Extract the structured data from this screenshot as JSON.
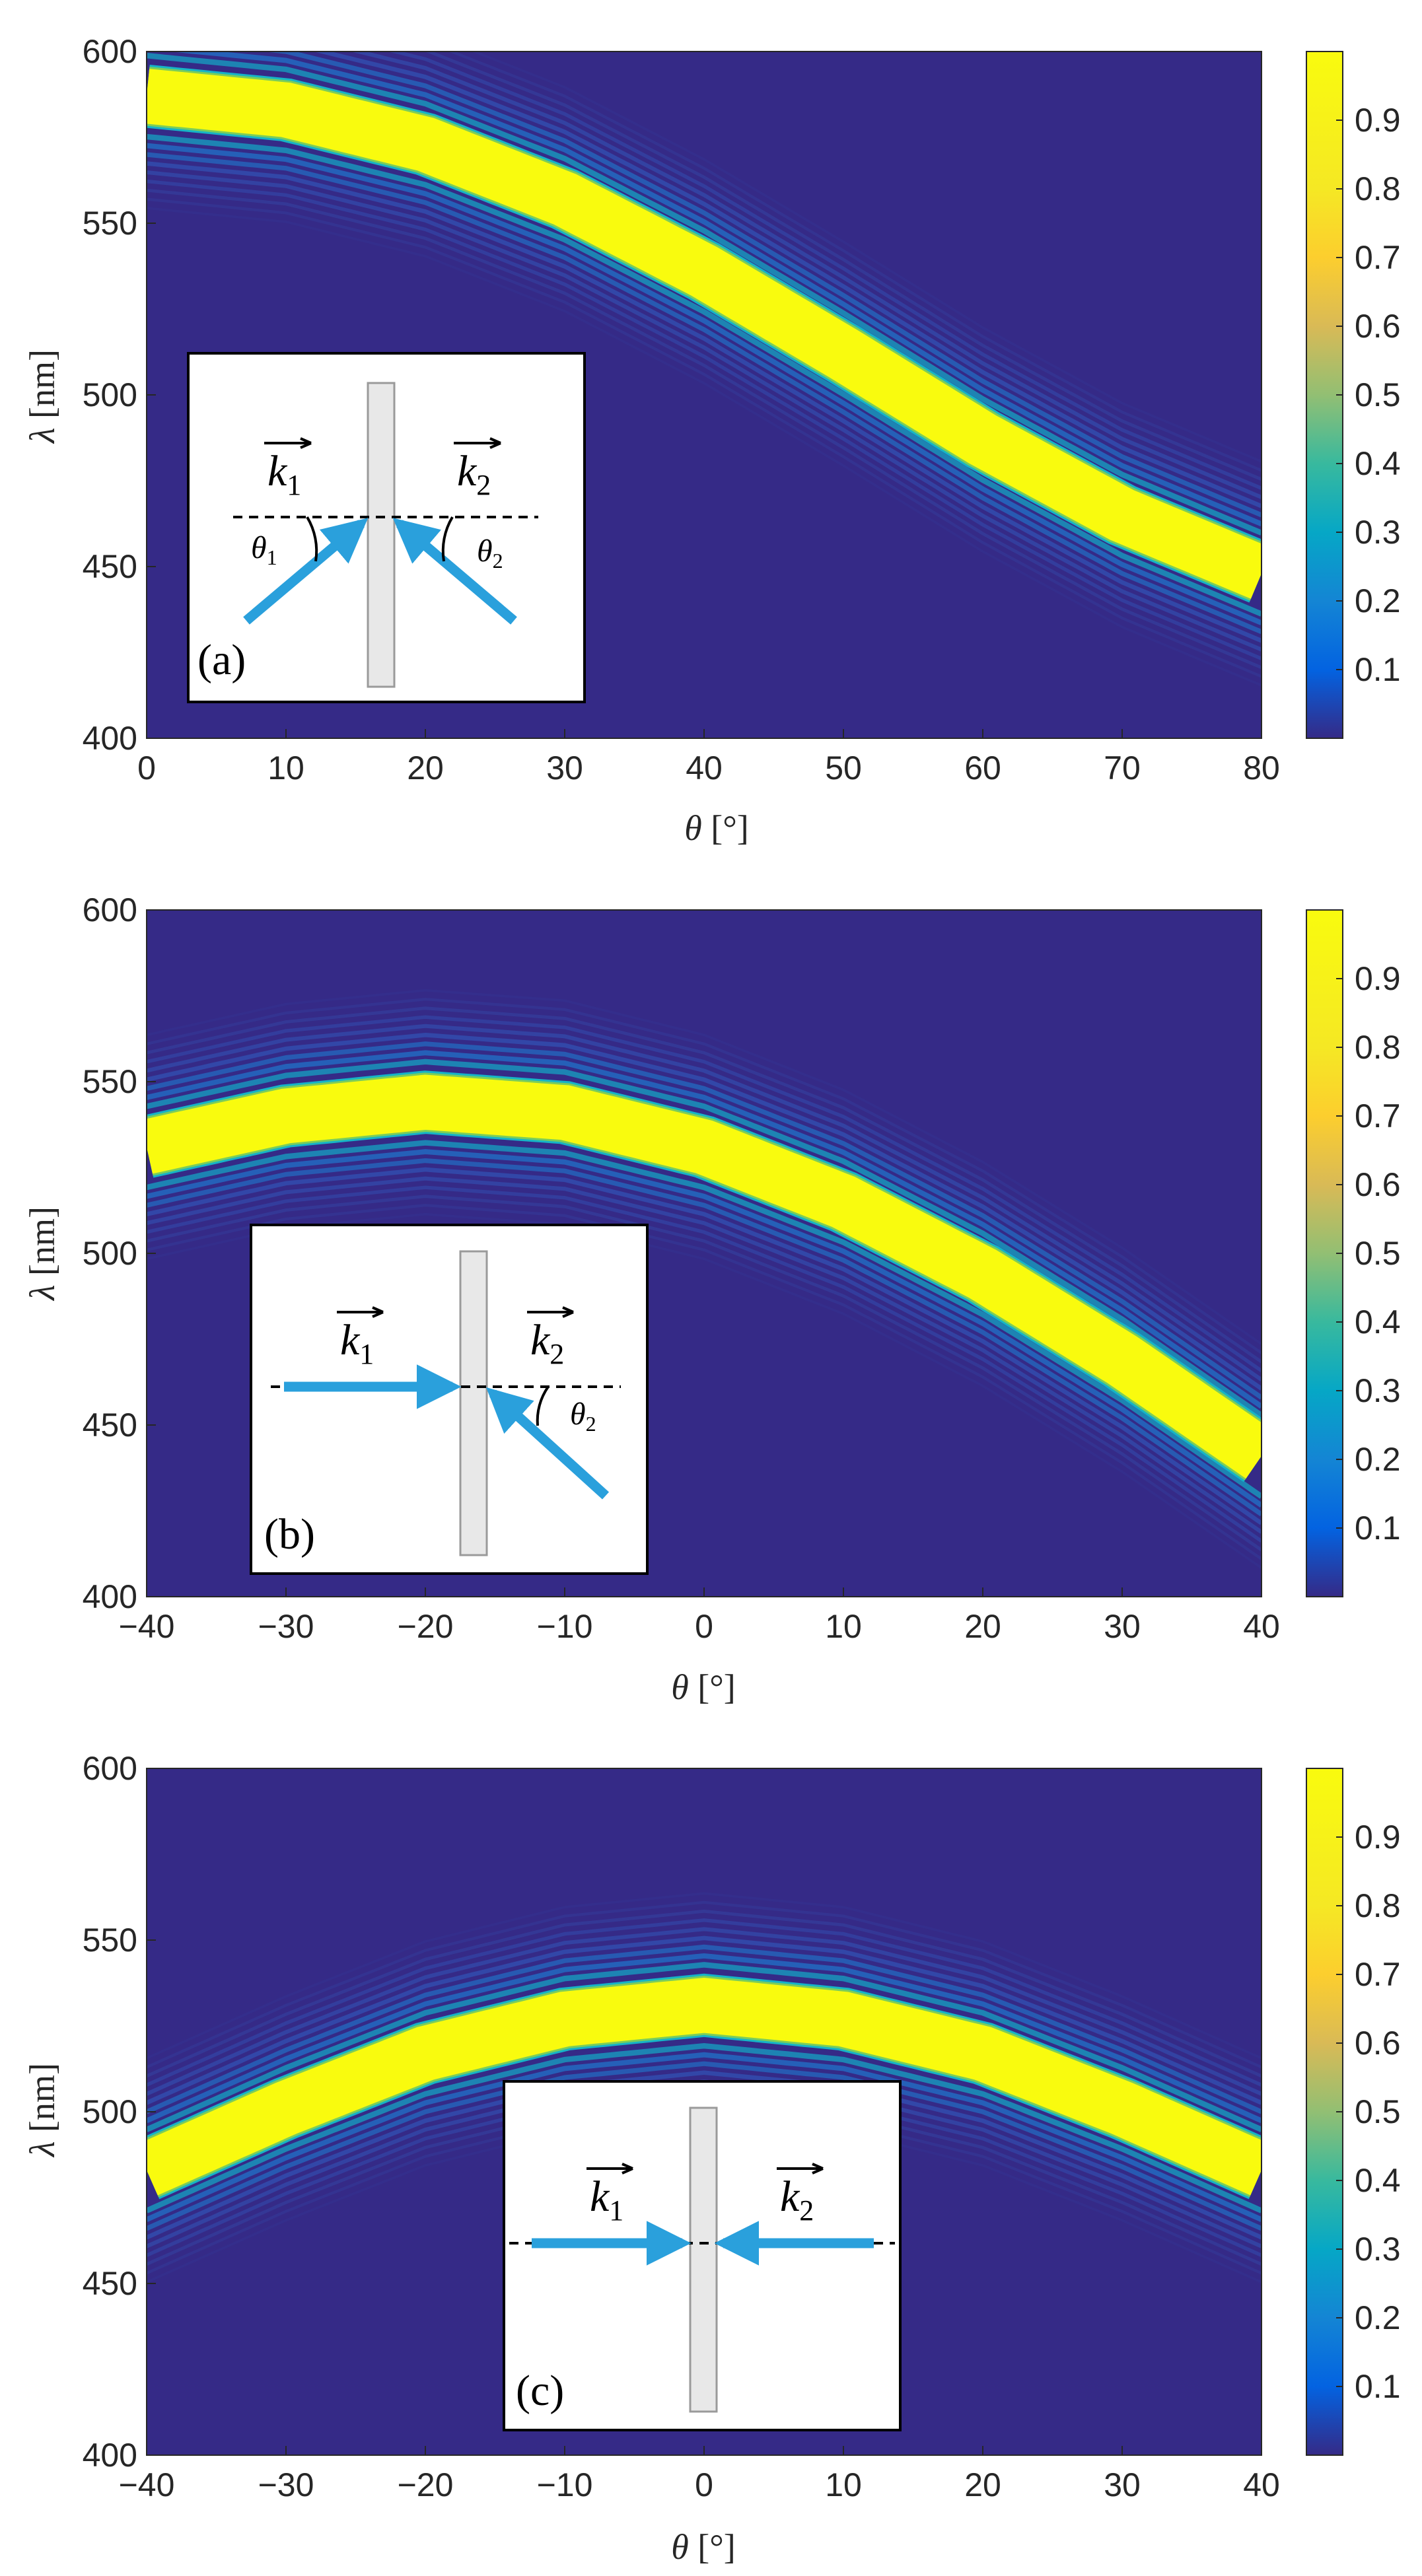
{
  "figure": {
    "title": "",
    "description": ""
  },
  "chart_data": [
    {
      "type": "heatmap",
      "panel": "a",
      "xlabel_var": "θ",
      "xlabel_unit": " [°]",
      "ylabel_var": "λ",
      "ylabel_unit": " [nm]",
      "xlim": [
        0,
        80
      ],
      "ylim": [
        400,
        600
      ],
      "xticks": [
        0,
        10,
        20,
        30,
        40,
        50,
        60,
        70,
        80
      ],
      "yticks": [
        400,
        450,
        500,
        550,
        600
      ],
      "center_curve": {
        "x": [
          0,
          10,
          20,
          30,
          40,
          50,
          60,
          70,
          80
        ],
        "y": [
          587,
          583,
          573,
          557,
          536,
          512,
          487,
          465,
          448
        ]
      },
      "band_halfwidth_nm": 8,
      "inset": {
        "label": "(a)",
        "k1": "k",
        "k1_sub": "1",
        "k2": "k",
        "k2_sub": "2",
        "theta1": "θ",
        "theta1_sub": "1",
        "theta2": "θ",
        "theta2_sub": "2"
      }
    },
    {
      "type": "heatmap",
      "panel": "b",
      "xlabel_var": "θ",
      "xlabel_unit": " [°]",
      "ylabel_var": "λ",
      "ylabel_unit": " [nm]",
      "xlim": [
        -40,
        40
      ],
      "ylim": [
        400,
        600
      ],
      "xticks": [
        -40,
        -30,
        -20,
        -10,
        0,
        10,
        20,
        30,
        40
      ],
      "xtick_labels": [
        "−40",
        "−30",
        "−20",
        "−10",
        "0",
        "10",
        "20",
        "30",
        "40"
      ],
      "yticks": [
        400,
        450,
        500,
        550,
        600
      ],
      "center_curve": {
        "x": [
          -40,
          -30,
          -20,
          -10,
          0,
          10,
          20,
          30,
          40
        ],
        "y": [
          531,
          540,
          544,
          541,
          531,
          515,
          494,
          469,
          441
        ]
      },
      "band_halfwidth_nm": 8,
      "inset": {
        "label": "(b)",
        "k1": "k",
        "k1_sub": "1",
        "k2": "k",
        "k2_sub": "2",
        "theta2": "θ",
        "theta2_sub": "2"
      }
    },
    {
      "type": "heatmap",
      "panel": "c",
      "xlabel_var": "θ",
      "xlabel_unit": " [°]",
      "ylabel_var": "λ",
      "ylabel_unit": " [nm]",
      "xlim": [
        -40,
        40
      ],
      "ylim": [
        400,
        600
      ],
      "xticks": [
        -40,
        -30,
        -20,
        -10,
        0,
        10,
        20,
        30,
        40
      ],
      "xtick_labels": [
        "−40",
        "−30",
        "−20",
        "−10",
        "0",
        "10",
        "20",
        "30",
        "40"
      ],
      "yticks": [
        400,
        450,
        500,
        550,
        600
      ],
      "center_curve": {
        "x": [
          -40,
          -30,
          -20,
          -10,
          0,
          10,
          20,
          30,
          40
        ],
        "y": [
          483,
          501,
          517,
          527,
          531,
          527,
          517,
          501,
          483
        ]
      },
      "band_halfwidth_nm": 8,
      "inset": {
        "label": "(c)",
        "k1": "k",
        "k1_sub": "1",
        "k2": "k",
        "k2_sub": "2"
      }
    }
  ],
  "colorbar": {
    "ticks": [
      0.1,
      0.2,
      0.3,
      0.4,
      0.5,
      0.6,
      0.7,
      0.8,
      0.9
    ],
    "tick_labels": [
      "0.1",
      "0.2",
      "0.3",
      "0.4",
      "0.5",
      "0.6",
      "0.7",
      "0.8",
      "0.9"
    ],
    "range": [
      0,
      1
    ]
  },
  "colors": {
    "background": "#352a87",
    "band_core": "#f9fb0e",
    "arrow": "#2aa0dc",
    "frame": "#262626"
  }
}
